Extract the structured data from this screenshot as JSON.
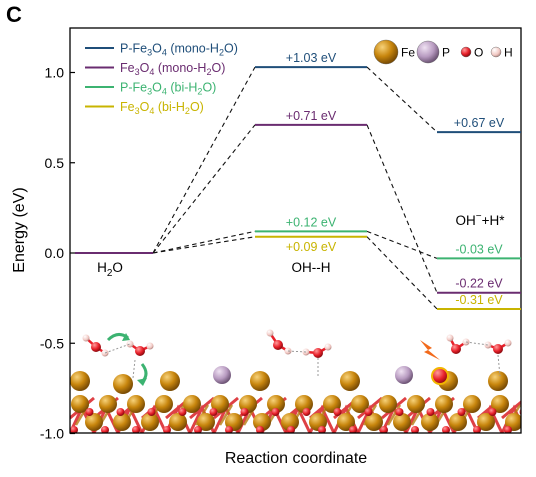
{
  "panel_letter": "C",
  "chart_data": {
    "type": "line",
    "xlabel": "Reaction coordinate",
    "ylabel": "Energy (eV)",
    "ylim": [
      -1.0,
      1.2
    ],
    "yticks": [
      "1.0",
      "0.5",
      "0.0",
      "-0.5",
      "-1.0"
    ],
    "ytick_values": [
      1.0,
      0.5,
      0.0,
      -0.5,
      -1.0
    ],
    "states": [
      "H2O",
      "OH--H",
      "OH−+H*"
    ],
    "state_labels": {
      "s0": {
        "main": "H",
        "sub": "2",
        "tail": "O"
      },
      "s1": {
        "main": "OH--H"
      },
      "s2": {
        "main": "OH",
        "sup": "−",
        "tail": "+H*"
      }
    },
    "legend_position": "top-left",
    "series": [
      {
        "name": "P-Fe3O4 (mono-H2O)",
        "legend": {
          "a": "P-Fe",
          "b": "3",
          "c": "O",
          "d": "4",
          "e": " (mono-H",
          "f": "2",
          "g": "O)"
        },
        "color": "#1f4e79",
        "values": [
          0.0,
          1.03,
          0.67
        ],
        "labels": [
          "",
          "+1.03 eV",
          "+0.67 eV"
        ]
      },
      {
        "name": "Fe3O4 (mono-H2O)",
        "legend": {
          "a": "Fe",
          "b": "3",
          "c": "O",
          "d": "4",
          "e": " (mono-H",
          "f": "2",
          "g": "O)"
        },
        "color": "#6a2c70",
        "values": [
          0.0,
          0.71,
          -0.22
        ],
        "labels": [
          "",
          "+0.71 eV",
          "-0.22 eV"
        ]
      },
      {
        "name": "P-Fe3O4 (bi-H2O)",
        "legend": {
          "a": "P-Fe",
          "b": "3",
          "c": "O",
          "d": "4",
          "e": " (bi-H",
          "f": "2",
          "g": "O)"
        },
        "color": "#3cb371",
        "values": [
          0.0,
          0.12,
          -0.03
        ],
        "labels": [
          "",
          "+0.12 eV",
          "-0.03 eV"
        ]
      },
      {
        "name": "Fe3O4 (bi-H2O)",
        "legend": {
          "a": "Fe",
          "b": "3",
          "c": "O",
          "d": "4",
          "e": " (bi-H",
          "f": "2",
          "g": "O)"
        },
        "color": "#c8b400",
        "values": [
          0.0,
          0.09,
          -0.31
        ],
        "labels": [
          "",
          "+0.09 eV",
          "-0.31 eV"
        ]
      }
    ]
  },
  "atom_legend": [
    {
      "symbol": "Fe",
      "color": "#c8860d"
    },
    {
      "symbol": "P",
      "color": "#b79ac0"
    },
    {
      "symbol": "O",
      "color": "#e8202a"
    },
    {
      "symbol": "H",
      "color": "#f2c9c4"
    }
  ]
}
